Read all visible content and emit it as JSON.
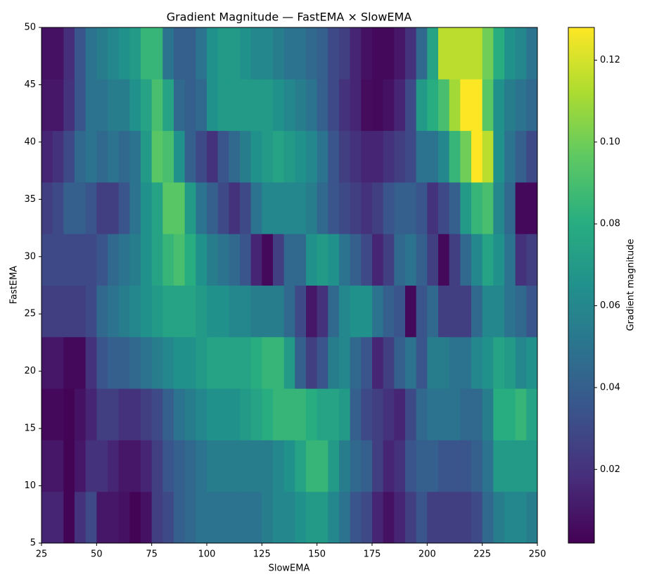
{
  "chart_data": {
    "type": "heatmap",
    "title": "Gradient Magnitude — FastEMA × SlowEMA",
    "x_label": "SlowEMA",
    "y_label": "FastEMA",
    "colorbar_label": "Gradient magnitude",
    "colormap": "viridis",
    "xlim": [
      25,
      250
    ],
    "ylim": [
      5,
      50
    ],
    "xticks": [
      25,
      50,
      75,
      100,
      125,
      150,
      175,
      200,
      225,
      250
    ],
    "yticks": [
      5,
      10,
      15,
      20,
      25,
      30,
      35,
      40,
      45,
      50
    ],
    "clim": [
      0.002,
      0.128
    ],
    "cticks": [
      0.02,
      0.04,
      0.06,
      0.08,
      {
        "value": 0.1,
        "label": "0.10"
      },
      0.12
    ],
    "values": [
      [
        0.015,
        0.015,
        0.003,
        0.02,
        0.03,
        0.01,
        0.01,
        0.008,
        0.003,
        0.008,
        0.025,
        0.03,
        0.04,
        0.045,
        0.05,
        0.05,
        0.05,
        0.05,
        0.05,
        0.05,
        0.055,
        0.06,
        0.06,
        0.065,
        0.07,
        0.07,
        0.06,
        0.05,
        0.035,
        0.03,
        0.015,
        0.008,
        0.015,
        0.025,
        0.035,
        0.025,
        0.025,
        0.025,
        0.025,
        0.03,
        0.045,
        0.055,
        0.06,
        0.06,
        0.055
      ],
      [
        0.01,
        0.01,
        0.003,
        0.01,
        0.02,
        0.02,
        0.015,
        0.01,
        0.01,
        0.015,
        0.025,
        0.035,
        0.04,
        0.045,
        0.05,
        0.055,
        0.055,
        0.055,
        0.055,
        0.055,
        0.055,
        0.06,
        0.065,
        0.075,
        0.085,
        0.085,
        0.07,
        0.055,
        0.045,
        0.04,
        0.025,
        0.015,
        0.02,
        0.035,
        0.04,
        0.04,
        0.035,
        0.035,
        0.035,
        0.04,
        0.05,
        0.07,
        0.07,
        0.07,
        0.07
      ],
      [
        0.005,
        0.005,
        0.003,
        0.008,
        0.015,
        0.025,
        0.025,
        0.02,
        0.02,
        0.025,
        0.03,
        0.04,
        0.05,
        0.055,
        0.06,
        0.065,
        0.065,
        0.065,
        0.07,
        0.075,
        0.08,
        0.085,
        0.085,
        0.085,
        0.08,
        0.075,
        0.075,
        0.07,
        0.04,
        0.03,
        0.025,
        0.02,
        0.015,
        0.03,
        0.045,
        0.05,
        0.05,
        0.05,
        0.045,
        0.045,
        0.055,
        0.08,
        0.08,
        0.085,
        0.075
      ],
      [
        0.01,
        0.01,
        0.005,
        0.005,
        0.02,
        0.035,
        0.04,
        0.04,
        0.045,
        0.05,
        0.055,
        0.06,
        0.065,
        0.065,
        0.07,
        0.075,
        0.075,
        0.075,
        0.075,
        0.08,
        0.085,
        0.085,
        0.07,
        0.04,
        0.025,
        0.035,
        0.055,
        0.06,
        0.045,
        0.035,
        0.015,
        0.025,
        0.04,
        0.05,
        0.035,
        0.055,
        0.055,
        0.05,
        0.05,
        0.06,
        0.065,
        0.075,
        0.07,
        0.06,
        0.065
      ],
      [
        0.025,
        0.025,
        0.025,
        0.025,
        0.03,
        0.045,
        0.05,
        0.055,
        0.06,
        0.065,
        0.07,
        0.075,
        0.075,
        0.075,
        0.07,
        0.065,
        0.065,
        0.06,
        0.06,
        0.055,
        0.055,
        0.055,
        0.045,
        0.03,
        0.01,
        0.02,
        0.045,
        0.06,
        0.065,
        0.065,
        0.05,
        0.04,
        0.035,
        0.005,
        0.035,
        0.045,
        0.025,
        0.025,
        0.025,
        0.045,
        0.06,
        0.06,
        0.05,
        0.045,
        0.035
      ],
      [
        0.03,
        0.03,
        0.03,
        0.03,
        0.03,
        0.035,
        0.045,
        0.05,
        0.055,
        0.065,
        0.075,
        0.085,
        0.09,
        0.08,
        0.065,
        0.055,
        0.05,
        0.045,
        0.035,
        0.015,
        0.005,
        0.025,
        0.045,
        0.045,
        0.065,
        0.07,
        0.065,
        0.05,
        0.04,
        0.03,
        0.015,
        0.025,
        0.045,
        0.05,
        0.04,
        0.025,
        0.005,
        0.025,
        0.045,
        0.06,
        0.075,
        0.065,
        0.05,
        0.02,
        0.025
      ],
      [
        0.025,
        0.03,
        0.04,
        0.04,
        0.035,
        0.025,
        0.025,
        0.035,
        0.05,
        0.065,
        0.075,
        0.095,
        0.095,
        0.07,
        0.05,
        0.04,
        0.03,
        0.02,
        0.03,
        0.05,
        0.06,
        0.06,
        0.06,
        0.06,
        0.055,
        0.045,
        0.035,
        0.03,
        0.025,
        0.02,
        0.025,
        0.035,
        0.04,
        0.04,
        0.035,
        0.02,
        0.03,
        0.04,
        0.07,
        0.085,
        0.09,
        0.06,
        0.045,
        0.005,
        0.005
      ],
      [
        0.015,
        0.02,
        0.03,
        0.045,
        0.05,
        0.045,
        0.05,
        0.045,
        0.05,
        0.07,
        0.095,
        0.09,
        0.065,
        0.04,
        0.03,
        0.02,
        0.035,
        0.045,
        0.055,
        0.065,
        0.07,
        0.075,
        0.07,
        0.065,
        0.06,
        0.05,
        0.035,
        0.025,
        0.02,
        0.015,
        0.015,
        0.02,
        0.025,
        0.03,
        0.05,
        0.05,
        0.06,
        0.085,
        0.1,
        0.128,
        0.115,
        0.065,
        0.05,
        0.04,
        0.03
      ],
      [
        0.01,
        0.01,
        0.02,
        0.035,
        0.05,
        0.05,
        0.055,
        0.055,
        0.065,
        0.075,
        0.09,
        0.075,
        0.045,
        0.04,
        0.045,
        0.065,
        0.07,
        0.07,
        0.07,
        0.07,
        0.07,
        0.065,
        0.06,
        0.055,
        0.05,
        0.04,
        0.03,
        0.02,
        0.015,
        0.006,
        0.005,
        0.008,
        0.015,
        0.03,
        0.07,
        0.08,
        0.09,
        0.11,
        0.128,
        0.128,
        0.095,
        0.065,
        0.055,
        0.05,
        0.045
      ],
      [
        0.008,
        0.008,
        0.018,
        0.035,
        0.05,
        0.055,
        0.06,
        0.065,
        0.07,
        0.085,
        0.085,
        0.05,
        0.04,
        0.04,
        0.05,
        0.065,
        0.07,
        0.07,
        0.065,
        0.06,
        0.06,
        0.055,
        0.05,
        0.05,
        0.045,
        0.04,
        0.03,
        0.025,
        0.015,
        0.008,
        0.005,
        0.005,
        0.01,
        0.02,
        0.045,
        0.075,
        0.115,
        0.115,
        0.115,
        0.115,
        0.1,
        0.08,
        0.065,
        0.06,
        0.05
      ]
    ]
  }
}
